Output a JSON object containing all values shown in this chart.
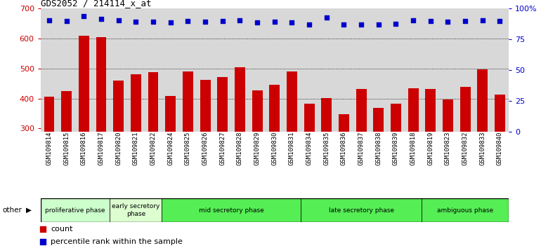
{
  "title": "GDS2052 / 214114_x_at",
  "samples": [
    "GSM109814",
    "GSM109815",
    "GSM109816",
    "GSM109817",
    "GSM109820",
    "GSM109821",
    "GSM109822",
    "GSM109824",
    "GSM109825",
    "GSM109826",
    "GSM109827",
    "GSM109828",
    "GSM109829",
    "GSM109830",
    "GSM109831",
    "GSM109834",
    "GSM109835",
    "GSM109836",
    "GSM109837",
    "GSM109838",
    "GSM109839",
    "GSM109818",
    "GSM109819",
    "GSM109823",
    "GSM109832",
    "GSM109833",
    "GSM109840"
  ],
  "counts": [
    405,
    425,
    610,
    605,
    460,
    482,
    487,
    408,
    490,
    463,
    472,
    505,
    427,
    447,
    490,
    383,
    402,
    347,
    433,
    368,
    382,
    435,
    432,
    397,
    440,
    498,
    413
  ],
  "percentile_ranks_left_scale": [
    660,
    658,
    675,
    665,
    660,
    656,
    657,
    655,
    658,
    657,
    658,
    660,
    655,
    657,
    655,
    648,
    670,
    648,
    648,
    648,
    649,
    660,
    658,
    657,
    659,
    660,
    659
  ],
  "phases": [
    {
      "label": "proliferative phase",
      "start": 0,
      "end": 4,
      "color": "#ccffcc"
    },
    {
      "label": "early secretory\nphase",
      "start": 4,
      "end": 7,
      "color": "#ddffd0"
    },
    {
      "label": "mid secretory phase",
      "start": 7,
      "end": 15,
      "color": "#55ee55"
    },
    {
      "label": "late secretory phase",
      "start": 15,
      "end": 22,
      "color": "#55ee55"
    },
    {
      "label": "ambiguous phase",
      "start": 22,
      "end": 27,
      "color": "#55ee55"
    }
  ],
  "ylim_left": [
    290,
    700
  ],
  "ylim_right": [
    0,
    100
  ],
  "bar_color": "#cc0000",
  "dot_color": "#0000cc",
  "plot_bg_color": "#d8d8d8",
  "fig_bg_color": "#ffffff",
  "grid_color": "#000000",
  "left_tick_color": "#cc0000",
  "right_tick_color": "#0000cc",
  "left_yticks": [
    300,
    400,
    500,
    600,
    700
  ],
  "right_yticks": [
    0,
    25,
    50,
    75,
    100
  ]
}
